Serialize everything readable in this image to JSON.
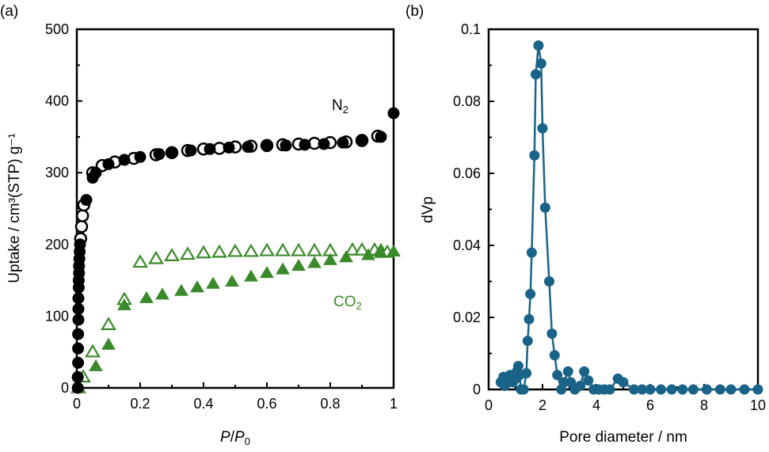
{
  "colors": {
    "n2": "#000000",
    "co2": "#3a8a2a",
    "psd": "#1a6388"
  },
  "chart_data": [
    {
      "panel_label": "(a)",
      "type": "scatter",
      "xlabel": "P/P0",
      "xlabel_italic": "P",
      "xlabel_sep": "/",
      "xlabel_italic2": "P",
      "xlabel_sub": "0",
      "ylabel": "Uptake / cm³(STP) g⁻¹",
      "xlim": [
        0,
        1
      ],
      "ylim": [
        0,
        500
      ],
      "xticks": [
        "0",
        "0.2",
        "0.4",
        "0.6",
        "0.8",
        "1"
      ],
      "yticks": [
        "0",
        "100",
        "200",
        "300",
        "400",
        "500"
      ],
      "annotations": [
        {
          "text": "N",
          "sub": "2"
        },
        {
          "text": "CO",
          "sub": "2"
        }
      ],
      "series": [
        {
          "gas": "N2",
          "branch": "adsorption",
          "marker": "filled-circle",
          "x": [
            0.003,
            0.003,
            0.004,
            0.004,
            0.004,
            0.005,
            0.005,
            0.005,
            0.006,
            0.006,
            0.007,
            0.007,
            0.008,
            0.009,
            0.01,
            0.03,
            0.05,
            0.06,
            0.1,
            0.15,
            0.2,
            0.26,
            0.3,
            0.36,
            0.42,
            0.48,
            0.54,
            0.6,
            0.66,
            0.72,
            0.78,
            0.84,
            0.9,
            0.96,
            1.0
          ],
          "y": [
            0,
            15,
            35,
            55,
            75,
            95,
            110,
            125,
            140,
            150,
            160,
            170,
            180,
            190,
            200,
            262,
            293,
            300,
            312,
            318,
            322,
            326,
            328,
            331,
            333,
            335,
            336,
            337,
            338,
            339,
            340,
            342,
            344,
            350,
            383
          ]
        },
        {
          "gas": "N2",
          "branch": "desorption",
          "marker": "open-circle",
          "x": [
            0.012,
            0.015,
            0.018,
            0.022,
            0.05,
            0.08,
            0.12,
            0.18,
            0.25,
            0.3,
            0.35,
            0.4,
            0.45,
            0.5,
            0.55,
            0.6,
            0.65,
            0.7,
            0.75,
            0.8,
            0.85,
            0.9,
            0.95
          ],
          "y": [
            208,
            225,
            240,
            255,
            300,
            310,
            315,
            320,
            325,
            328,
            331,
            333,
            334,
            336,
            337,
            338,
            339,
            340,
            341,
            342,
            343,
            345,
            351
          ]
        },
        {
          "gas": "CO2",
          "branch": "adsorption",
          "marker": "filled-triangle",
          "x": [
            0.005,
            0.06,
            0.1,
            0.15,
            0.22,
            0.27,
            0.33,
            0.38,
            0.43,
            0.49,
            0.55,
            0.6,
            0.65,
            0.7,
            0.75,
            0.8,
            0.85,
            0.92,
            0.96,
            1.0
          ],
          "y": [
            0,
            30,
            60,
            115,
            125,
            130,
            135,
            140,
            145,
            148,
            155,
            160,
            165,
            170,
            174,
            178,
            182,
            185,
            188,
            190
          ]
        },
        {
          "gas": "CO2",
          "branch": "desorption",
          "marker": "open-triangle",
          "x": [
            0.005,
            0.02,
            0.05,
            0.1,
            0.15,
            0.2,
            0.25,
            0.3,
            0.35,
            0.4,
            0.45,
            0.5,
            0.55,
            0.6,
            0.65,
            0.7,
            0.75,
            0.8,
            0.87,
            0.9,
            0.94,
            0.96,
            0.98
          ],
          "y": [
            0,
            15,
            50,
            88,
            123,
            175,
            180,
            184,
            186,
            188,
            189,
            190,
            190,
            191,
            191,
            191,
            191,
            191,
            192,
            192,
            192,
            191,
            189
          ]
        }
      ]
    },
    {
      "panel_label": "(b)",
      "type": "line",
      "xlabel": "Pore diameter / nm",
      "ylabel": "dVp",
      "xlim": [
        0,
        10
      ],
      "ylim": [
        0,
        0.1
      ],
      "xticks": [
        "0",
        "2",
        "4",
        "6",
        "8",
        "10"
      ],
      "yticks": [
        "0",
        "0.02",
        "0.04",
        "0.06",
        "0.08",
        "0.1"
      ],
      "series": [
        {
          "marker": "filled-circle",
          "x": [
            0.45,
            0.55,
            0.6,
            0.7,
            0.8,
            0.9,
            1.0,
            1.05,
            1.1,
            1.15,
            1.2,
            1.3,
            1.4,
            1.45,
            1.5,
            1.55,
            1.6,
            1.7,
            1.75,
            1.85,
            1.95,
            2.0,
            2.1,
            2.25,
            2.35,
            2.45,
            2.55,
            2.7,
            2.8,
            2.95,
            3.05,
            3.2,
            3.4,
            3.55,
            3.7,
            3.9,
            4.1,
            4.3,
            4.5,
            4.8,
            5.0,
            5.4,
            5.7,
            6.0,
            6.4,
            6.8,
            7.2,
            7.6,
            8.1,
            8.6,
            9.0,
            9.5,
            10.0
          ],
          "y": [
            0.002,
            0.0035,
            0.001,
            0.003,
            0.004,
            0.002,
            0.003,
            0.005,
            0.0065,
            0.004,
            0.0,
            0.0,
            0.0045,
            0.0135,
            0.0195,
            0.0265,
            0.038,
            0.065,
            0.0875,
            0.0955,
            0.0905,
            0.0725,
            0.0505,
            0.03,
            0.0155,
            0.0095,
            0.004,
            0.0,
            0.002,
            0.005,
            0.002,
            0.0,
            0.001,
            0.005,
            0.0025,
            0,
            0,
            0,
            0,
            0.003,
            0.002,
            0,
            0,
            0,
            0,
            0,
            0,
            0,
            0,
            0,
            0,
            0,
            0
          ]
        }
      ]
    }
  ]
}
